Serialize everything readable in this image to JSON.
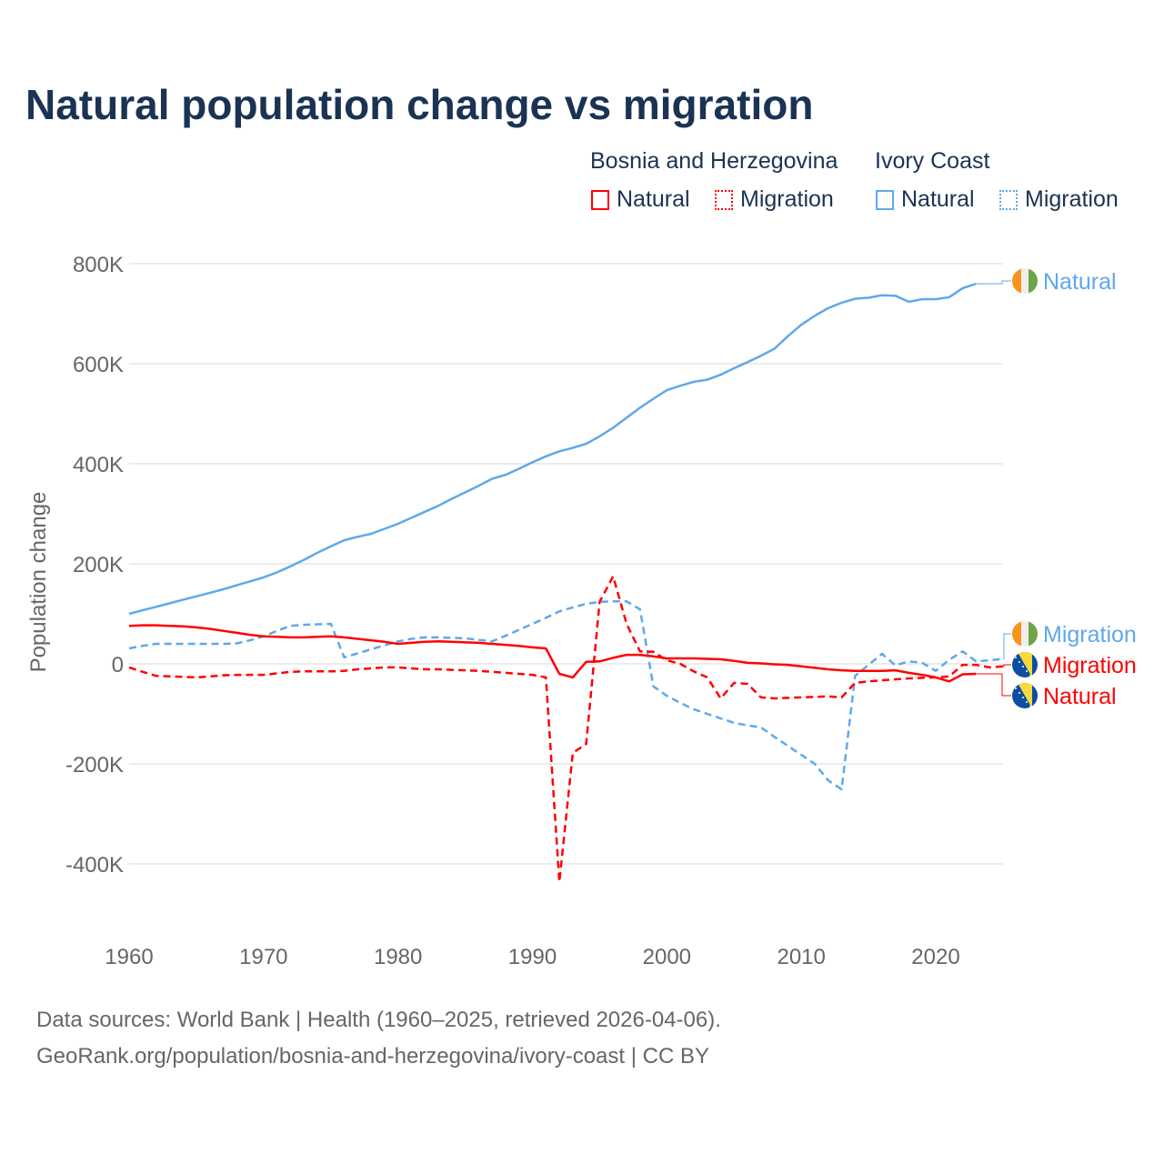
{
  "title": "Natural population change vs migration",
  "legend": {
    "groups": [
      {
        "name": "Bosnia and Herzegovina",
        "color": "#ff0000",
        "items": [
          "Natural",
          "Migration"
        ]
      },
      {
        "name": "Ivory Coast",
        "color": "#5fa8ea",
        "items": [
          "Natural",
          "Migration"
        ]
      }
    ]
  },
  "footer": {
    "line1": "Data sources: World Bank | Health (1960–2025, retrieved 2026-04-06).",
    "line2": "GeoRank.org/population/bosnia-and-herzegovina/ivory-coast | CC BY"
  },
  "chart_data": {
    "type": "line",
    "title": "Natural population change vs migration",
    "xlabel": "",
    "ylabel": "Population change",
    "xlim": [
      1960,
      2025
    ],
    "ylim": [
      -500,
      800
    ],
    "y_units": "thousands",
    "x_ticks": [
      "1960",
      "1970",
      "1980",
      "1990",
      "2000",
      "2010",
      "2020"
    ],
    "y_ticks": [
      {
        "v": 800,
        "label": "800K"
      },
      {
        "v": 600,
        "label": "600K"
      },
      {
        "v": 400,
        "label": "400K"
      },
      {
        "v": 200,
        "label": "200K"
      },
      {
        "v": 0,
        "label": "0"
      },
      {
        "v": -200,
        "label": "-200K"
      },
      {
        "v": -400,
        "label": "-400K"
      }
    ],
    "grid": true,
    "legend_position": "top-right",
    "series": [
      {
        "name": "Ivory Coast Natural",
        "end_label": "Natural",
        "country": "ci",
        "color": "#5fa8ea",
        "dashed": false,
        "start": 1960,
        "values": [
          100,
          107,
          114,
          121,
          128,
          135,
          142,
          149,
          157,
          165,
          173,
          183,
          195,
          208,
          222,
          235,
          247,
          254,
          260,
          270,
          280,
          292,
          304,
          316,
          330,
          343,
          356,
          370,
          378,
          390,
          403,
          415,
          425,
          432,
          440,
          455,
          472,
          492,
          512,
          530,
          547,
          556,
          564,
          568,
          578,
          591,
          603,
          616,
          630,
          655,
          678,
          696,
          711,
          722,
          730,
          732,
          737,
          736,
          724,
          729,
          729,
          733,
          751,
          760
        ]
      },
      {
        "name": "Ivory Coast Migration",
        "end_label": "Migration",
        "country": "ci",
        "color": "#5fa8ea",
        "dashed": true,
        "start": 1960,
        "values": [
          31,
          36,
          40,
          40,
          40,
          40,
          40,
          40,
          41,
          47,
          55,
          66,
          76,
          78,
          79,
          80,
          13,
          21,
          29,
          37,
          45,
          50,
          53,
          53,
          52,
          51,
          48,
          45,
          56,
          68,
          80,
          92,
          105,
          113,
          120,
          124,
          125,
          125,
          109,
          -45,
          -64,
          -78,
          -91,
          -100,
          -109,
          -118,
          -123,
          -127,
          -146,
          -164,
          -182,
          -200,
          -233,
          -251,
          -24,
          -2,
          20,
          -3,
          5,
          2,
          -14,
          8,
          25,
          5,
          7,
          10
        ]
      },
      {
        "name": "Bosnia and Herzegovina Migration",
        "end_label": "Migration",
        "country": "ba",
        "color": "#ff0000",
        "dashed": true,
        "start": 1960,
        "values": [
          -7,
          -16,
          -24,
          -25,
          -26,
          -27,
          -25,
          -23,
          -22,
          -22,
          -22,
          -19,
          -16,
          -15,
          -15,
          -15,
          -14,
          -11,
          -9,
          -7,
          -7,
          -9,
          -11,
          -11,
          -12,
          -13,
          -14,
          -16,
          -18,
          -20,
          -22,
          -27,
          -436,
          -178,
          -160,
          124,
          175,
          80,
          25,
          24,
          7,
          0,
          -15,
          -27,
          -69,
          -38,
          -40,
          -67,
          -69,
          -68,
          -67,
          -66,
          -65,
          -67,
          -38,
          -35,
          -33,
          -31,
          -29,
          -28,
          -27,
          -25,
          -2,
          -2,
          -7,
          -5
        ]
      },
      {
        "name": "Bosnia and Herzegovina Natural",
        "end_label": "Natural",
        "country": "ba",
        "color": "#ff0000",
        "dashed": false,
        "start": 1960,
        "values": [
          76,
          77,
          77,
          76,
          75,
          73,
          70,
          66,
          62,
          58,
          55,
          54,
          53,
          53,
          54,
          55,
          53,
          50,
          47,
          44,
          40,
          42,
          44,
          45,
          44,
          43,
          42,
          40,
          38,
          36,
          33,
          31,
          -20,
          -27,
          4,
          5,
          12,
          18,
          18,
          15,
          11,
          11,
          11,
          10,
          9,
          6,
          2,
          1,
          -1,
          -2,
          -5,
          -8,
          -11,
          -13,
          -14,
          -14,
          -14,
          -13,
          -18,
          -22,
          -27,
          -35,
          -21,
          -20
        ]
      }
    ]
  }
}
